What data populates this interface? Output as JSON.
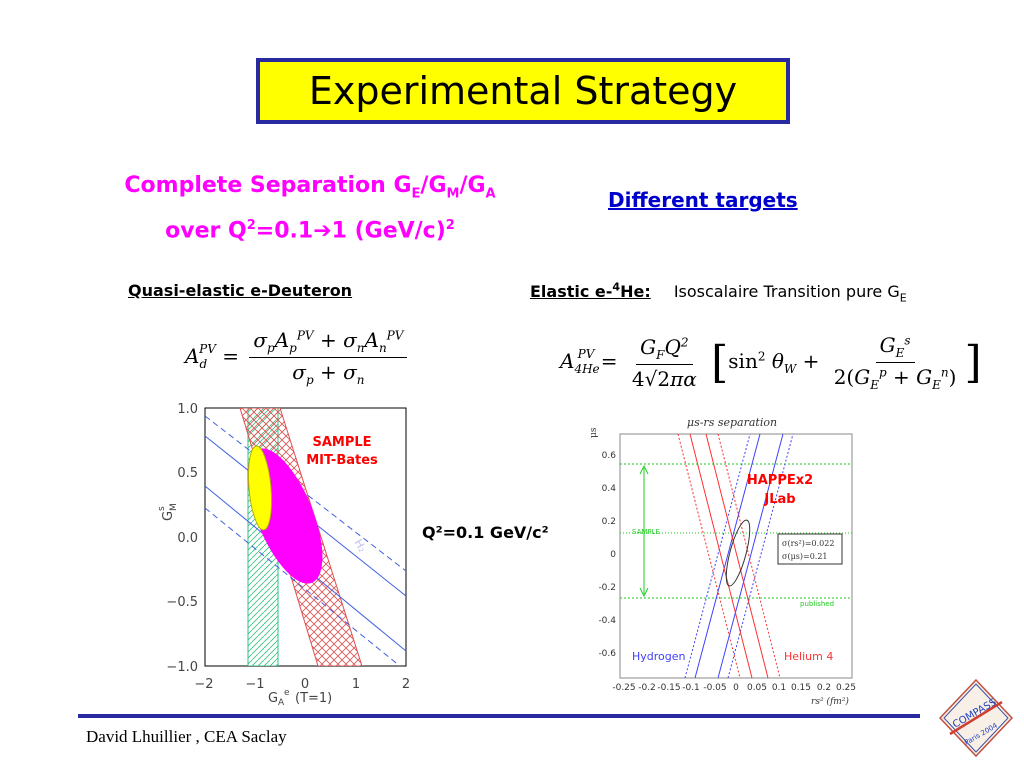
{
  "title": "Experimental Strategy",
  "left_heading": {
    "line1_prefix": "Complete Separation G",
    "sub_E": "E",
    "slash1": "/G",
    "sub_M": "M",
    "slash2": "/G",
    "sub_A": "A",
    "line2_prefix": "over Q",
    "sup2": "2",
    "line2_mid": "=0.1",
    "arrow": "➔",
    "line2_end": "1 (GeV/c)",
    "sup2b": "2"
  },
  "right_heading": "Different targets",
  "left_sub": "Quasi-elastic e-Deuteron",
  "right_sub_bold": "Elastic e-",
  "right_sub_sup": "4",
  "right_sub_bold_end": "He:",
  "right_sub_text": "Isoscalaire Transition pure G",
  "right_sub_sub": "E",
  "q2_label": "Q²=0.1 GeV/c²",
  "left_plot": {
    "ytick": [
      "1.0",
      "0.5",
      "0.0",
      "−0.5",
      "−1.0"
    ],
    "xtick": [
      "−2",
      "−1",
      "0",
      "1",
      "2"
    ],
    "ylabel": "G",
    "ylabel_sup": "s",
    "ylabel_sub": "M",
    "xlabel": "G",
    "xlabel_sub": "A",
    "xlabel_sup": "e",
    "xlabel_rest": "(T=1)",
    "annotation": [
      "SAMPLE",
      "MIT-Bates"
    ],
    "h2_label": "H₂"
  },
  "right_plot": {
    "title": "μs-rs separation",
    "ylabel": "μs",
    "ytick": [
      "0.6",
      "0.4",
      "0.2",
      "0",
      "-0.2",
      "-0.4",
      "-0.6"
    ],
    "xtick": [
      "-0.25",
      "-0.2",
      "-0.15",
      "-0.1",
      "-0.05",
      "0",
      "0.05",
      "0.1",
      "0.15",
      "0.2",
      "0.25"
    ],
    "xlabel": "rs² (fm²)",
    "annotation": [
      "HAPPEx2",
      "JLab"
    ],
    "sample_label": "SAMPLE",
    "published_label": "published",
    "sigma_r": "σ(rs²)=0.022",
    "sigma_mu": "σ(μs)=0.21",
    "hydrogen": "Hydrogen",
    "helium": "Helium 4"
  },
  "logo": {
    "top": "COMPASS",
    "bottom": "Paris 2004"
  },
  "footer": "David Lhuillier , CEA Saclay",
  "colors": {
    "title_bg": "#ffff00",
    "title_border": "#2a2aa0",
    "magenta": "#ff00ff",
    "link_blue": "#0000cc",
    "footer_line": "#2a2aa0"
  }
}
